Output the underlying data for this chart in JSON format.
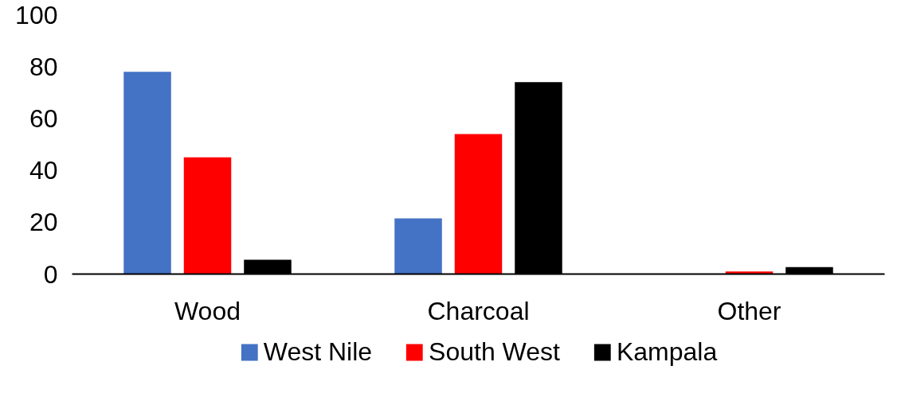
{
  "chart_data": {
    "type": "bar",
    "categories": [
      "Wood",
      "Charcoal",
      "Other"
    ],
    "series": [
      {
        "name": "West Nile",
        "color": "#4472c4",
        "values": [
          78,
          21.5,
          0
        ]
      },
      {
        "name": "South West",
        "color": "#ff0000",
        "values": [
          45,
          54,
          1
        ]
      },
      {
        "name": "Kampala",
        "color": "#000000",
        "values": [
          5.5,
          74,
          2.7
        ]
      }
    ],
    "ylim": [
      0,
      100
    ],
    "yticks": [
      0,
      20,
      40,
      60,
      80,
      100
    ],
    "grid": false,
    "legend": "bottom"
  }
}
